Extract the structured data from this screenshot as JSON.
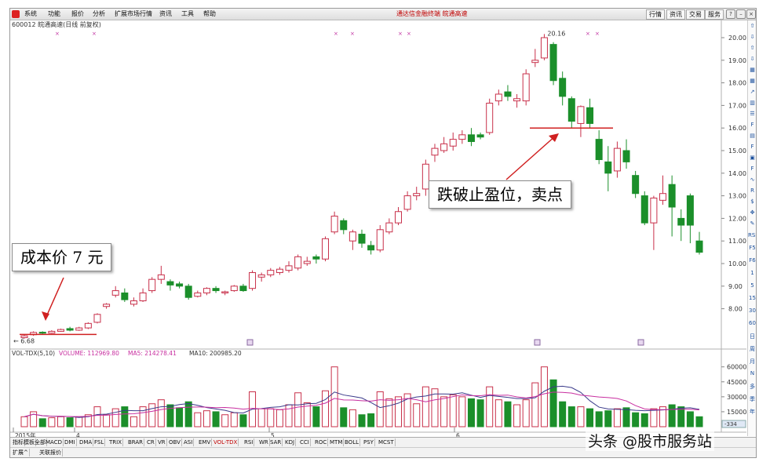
{
  "menu": {
    "items": [
      "系统",
      "功能",
      "报价",
      "分析",
      "扩展市场行情",
      "资讯",
      "工具",
      "帮助"
    ],
    "center_title": "通达信金融终端   皖通高速",
    "right_buttons": [
      "行情",
      "资讯",
      "交易",
      "服务"
    ]
  },
  "info_bar": "600012 皖通高速(日线 前复权)",
  "chart": {
    "high_label": "20.16",
    "low_label": "6.68",
    "price_axis": [
      "20.00",
      "19.00",
      "18.00",
      "17.00",
      "16.00",
      "15.00",
      "14.00",
      "13.00",
      "12.00",
      "11.00",
      "10.00",
      "9.00",
      "8.00"
    ],
    "date_labels": [
      "2015年",
      "4",
      "5",
      "6"
    ],
    "vol_indicator": "VOL-TDX(5,10)",
    "vol_volume": "VOLUME: 112969.80",
    "vol_ma5": "MA5: 214278.41",
    "vol_ma10": "MA10: 200985.20",
    "vol_axis": [
      "60000",
      "45000",
      "30000",
      "15000"
    ],
    "vol_unit_box": "-334",
    "colors": {
      "up": "#c8304a",
      "down": "#1b8f2a",
      "ma5": "#3a3a8a",
      "ma10": "#c82fa0",
      "annotation": "#d02020"
    }
  },
  "annotations": {
    "cost_price": "成本价 7 元",
    "sell_point": "跌破止盈位，卖点"
  },
  "sidebar": {
    "icons": [
      "up-arrow-icon",
      "down-arrow-icon",
      "up-arrow-icon",
      "down-arrow-icon",
      "grid-icon",
      "grid-icon",
      "trend-icon",
      "chart-icon",
      "list-icon",
      "fn-icon",
      "doc-icon",
      "fn-icon",
      "calc-icon",
      "fn-icon",
      "wave-icon",
      "rsi-icon",
      "dollar-icon",
      "move-icon",
      "pen-icon"
    ],
    "labels": [
      "RSI",
      "F5",
      "F6",
      "1",
      "5",
      "15",
      "30",
      "60",
      "日",
      "周",
      "月",
      "N",
      "多",
      "季",
      "年"
    ]
  },
  "tabs": [
    "指标",
    "模板",
    "全部",
    "MACD",
    "DMI",
    "DMA",
    "FSL",
    "TRIX",
    "BRAR",
    "CR",
    "VR",
    "OBV",
    "ASI",
    "EMV",
    "VOL-TDX",
    "RSI",
    "WR",
    "SAR",
    "KDJ",
    "CCI",
    "ROC",
    "MTM",
    "BOLL",
    "PSY",
    "MCST"
  ],
  "active_tab": "VOL-TDX",
  "tabs2": [
    "扩展^",
    "关联报价"
  ],
  "watermark": "头条 @股市服务站"
}
